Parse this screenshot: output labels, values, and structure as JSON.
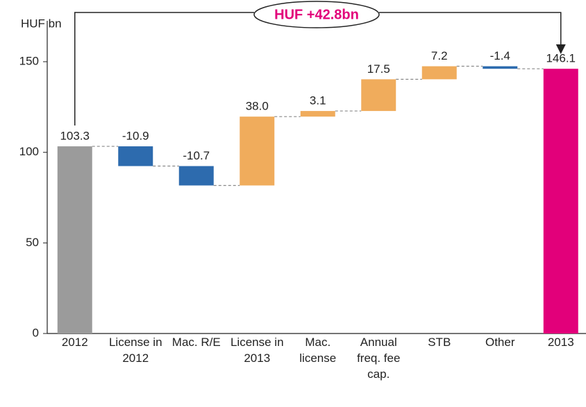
{
  "chart_data": {
    "type": "waterfall",
    "y_label": "HUF bn",
    "annotation": "HUF +42.8bn",
    "categories": [
      "2012",
      "License in 2012",
      "Mac. R/E",
      "License in 2013",
      "Mac. license",
      "Annual freq. fee cap.",
      "STB",
      "Other",
      "2013"
    ],
    "values": [
      103.3,
      -10.9,
      -10.7,
      38.0,
      3.1,
      17.5,
      7.2,
      -1.4,
      146.1
    ],
    "value_labels": [
      "103.3",
      "-10.9",
      "-10.7",
      "38.0",
      "3.1",
      "17.5",
      "7.2",
      "-1.4",
      "146.1"
    ],
    "totals": [
      true,
      false,
      false,
      false,
      false,
      false,
      false,
      false,
      true
    ],
    "colors": [
      "#9b9b9b",
      "#2d6bae",
      "#2d6bae",
      "#f0ac5c",
      "#f0ac5c",
      "#f0ac5c",
      "#f0ac5c",
      "#2d6bae",
      "#e2007a"
    ],
    "ylim": [
      0,
      150
    ],
    "yticks": [
      0,
      50,
      100,
      150
    ]
  }
}
